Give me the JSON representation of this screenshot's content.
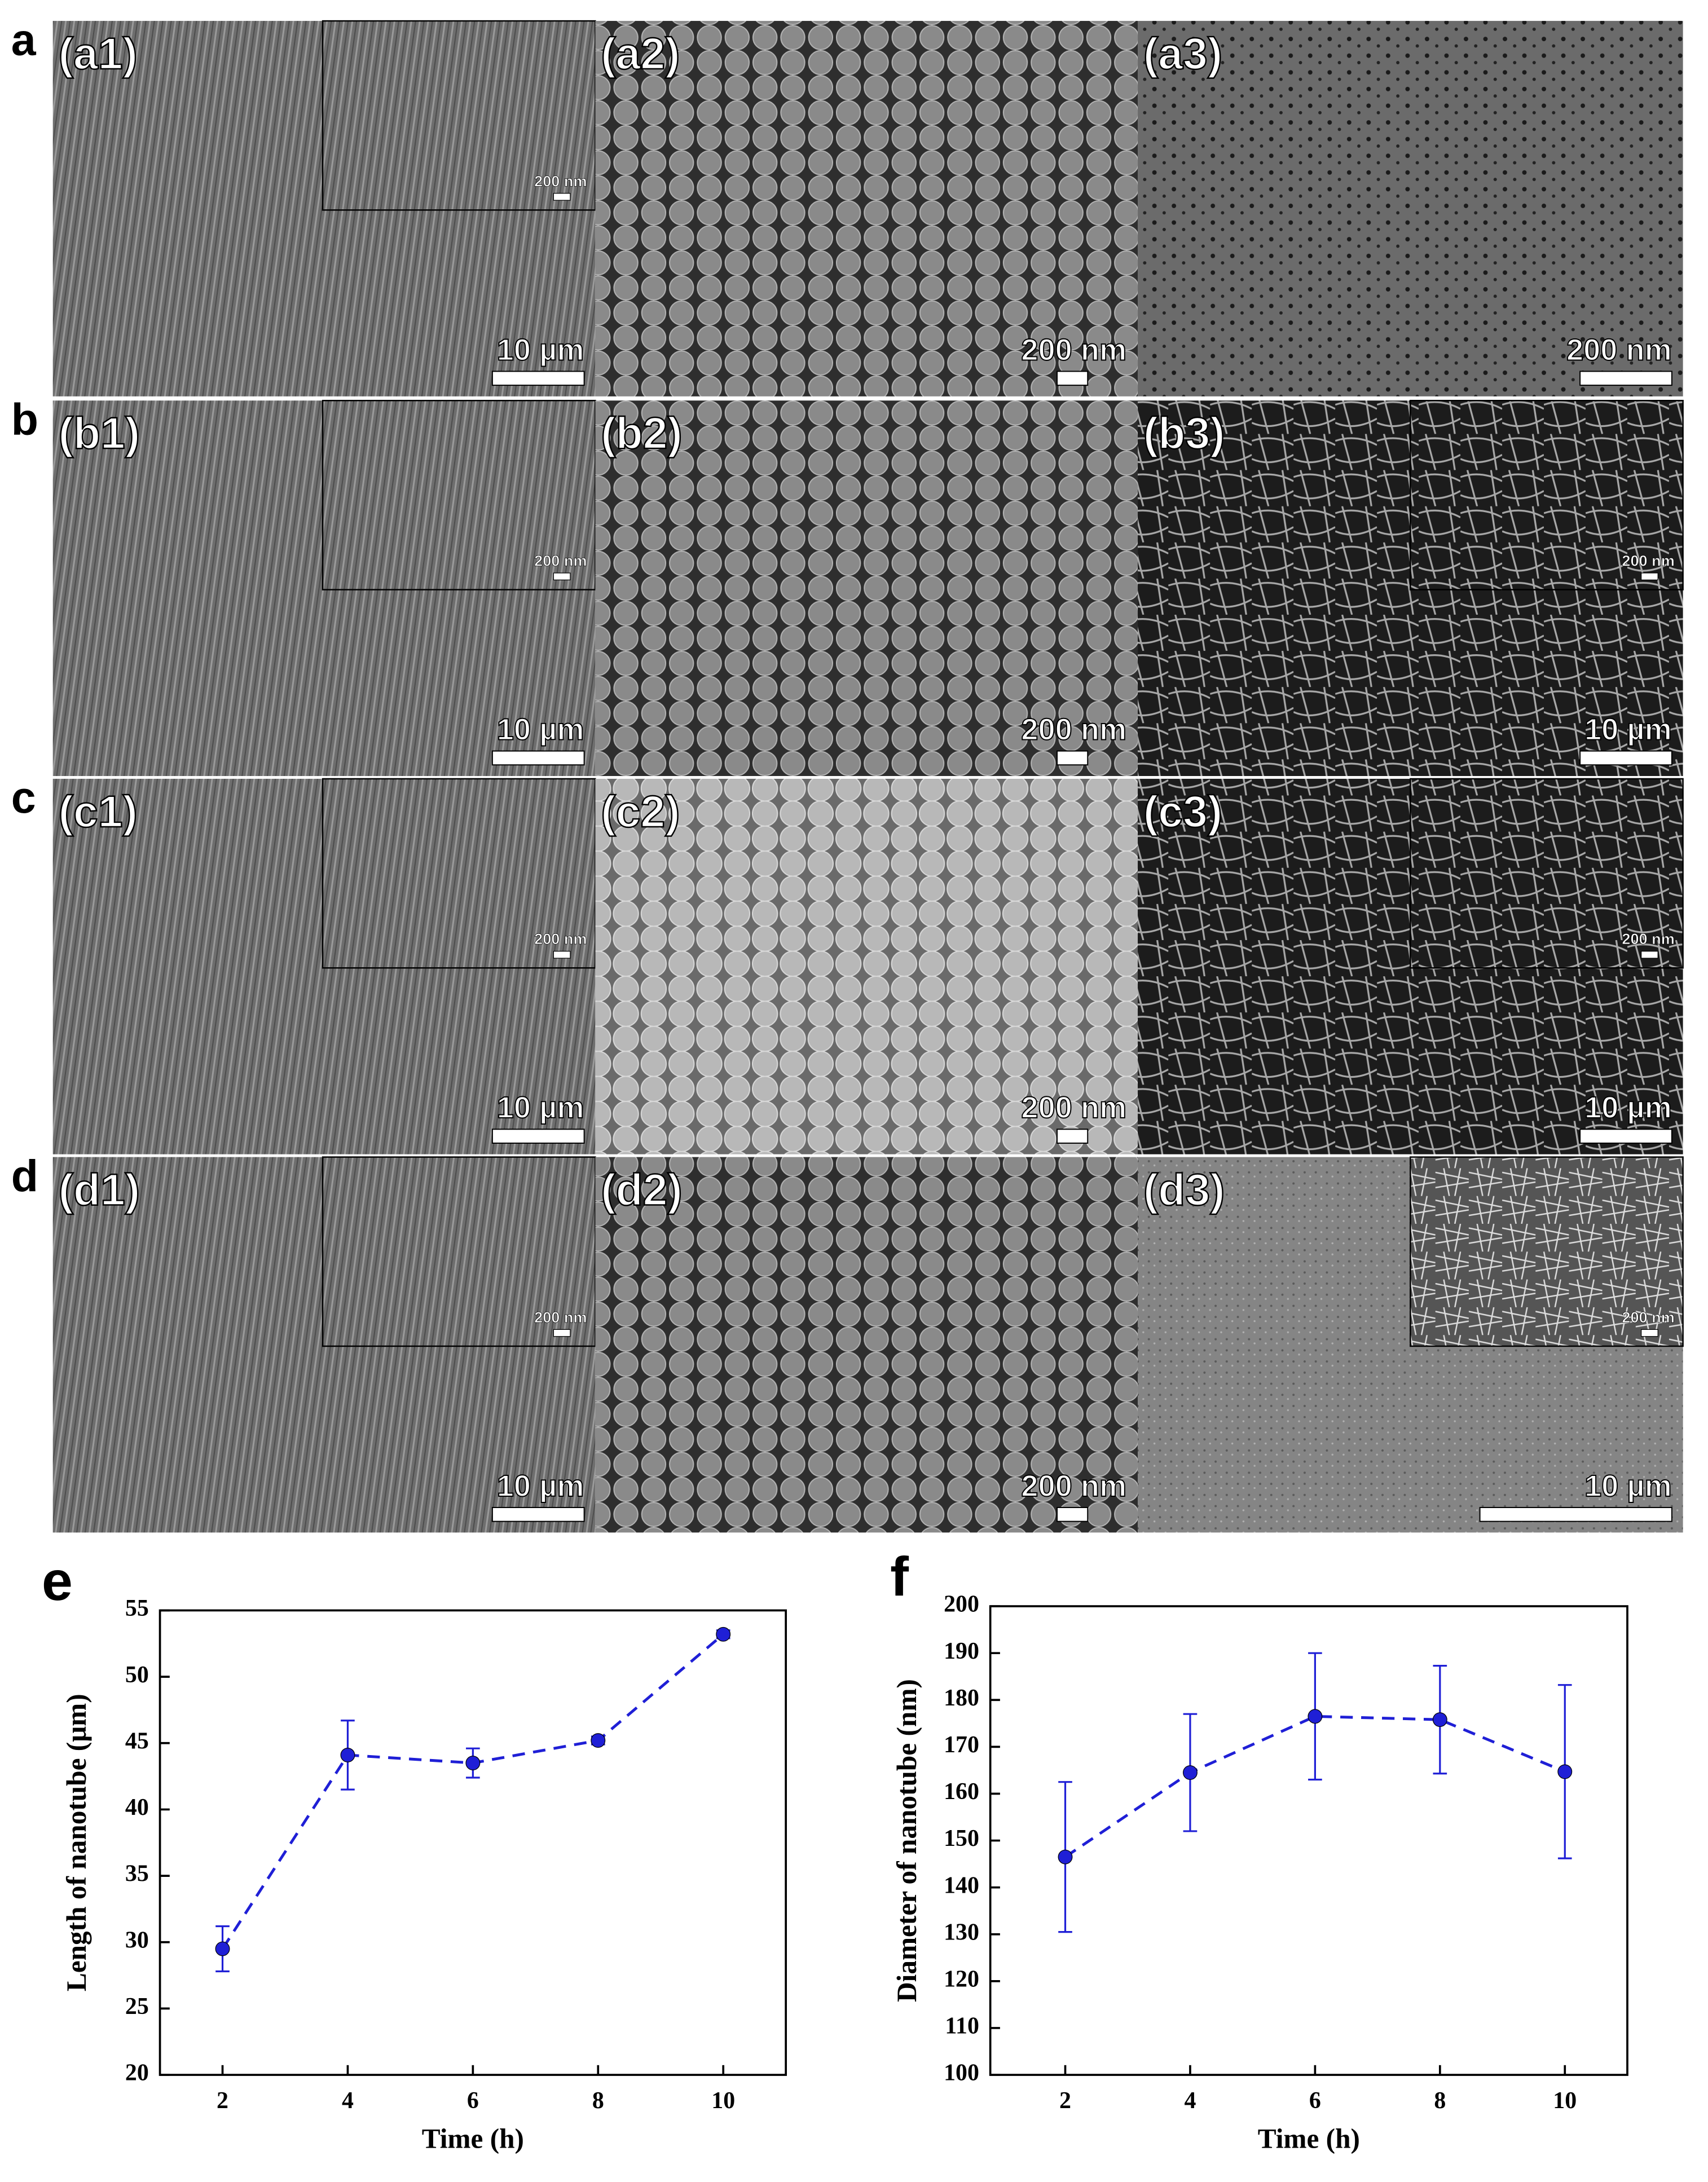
{
  "panels": [
    {
      "letter": "a",
      "cells": [
        {
          "label": "(a1)",
          "scale": "10 µm",
          "inset_scale": "200 nm"
        },
        {
          "label": "(a2)",
          "scale": "200 nm"
        },
        {
          "label": "(a3)",
          "scale": "200 nm"
        }
      ]
    },
    {
      "letter": "b",
      "cells": [
        {
          "label": "(b1)",
          "scale": "10 µm",
          "inset_scale": "200 nm"
        },
        {
          "label": "(b2)",
          "scale": "200 nm"
        },
        {
          "label": "(b3)",
          "scale": "10 µm",
          "inset_scale": "200 nm"
        }
      ]
    },
    {
      "letter": "c",
      "cells": [
        {
          "label": "(c1)",
          "scale": "10 µm",
          "inset_scale": "200 nm"
        },
        {
          "label": "(c2)",
          "scale": "200 nm"
        },
        {
          "label": "(c3)",
          "scale": "10 µm",
          "inset_scale": "200 nm"
        }
      ]
    },
    {
      "letter": "d",
      "cells": [
        {
          "label": "(d1)",
          "scale": "10 µm",
          "inset_scale": "200 nm"
        },
        {
          "label": "(d2)",
          "scale": "200 nm"
        },
        {
          "label": "(d3)",
          "scale": "10 µm",
          "inset_scale": "200 nm"
        }
      ]
    }
  ],
  "chart_data": [
    {
      "type": "line",
      "label": "e",
      "xlabel": "Time (h)",
      "ylabel": "Length of nanotube (μm)",
      "x": [
        2,
        4,
        6,
        8,
        10
      ],
      "series": [
        {
          "color": "#1f1fd6",
          "values": [
            29.5,
            44.1,
            43.5,
            45.2,
            53.2
          ],
          "errors": [
            1.7,
            2.6,
            1.1,
            0.3,
            0.3
          ]
        }
      ],
      "xlim": [
        1,
        11
      ],
      "xticks": [
        2,
        4,
        6,
        8,
        10
      ],
      "ylim": [
        20,
        55
      ],
      "yticks": [
        20,
        25,
        30,
        35,
        40,
        45,
        50,
        55
      ]
    },
    {
      "type": "line",
      "label": "f",
      "xlabel": "Time (h)",
      "ylabel": "Diameter of nanotube (nm)",
      "x": [
        2,
        4,
        6,
        8,
        10
      ],
      "series": [
        {
          "color": "#1f1fd6",
          "values": [
            146.5,
            164.5,
            176.5,
            175.8,
            164.7
          ],
          "errors": [
            16,
            12.5,
            13.5,
            11.5,
            18.5
          ]
        }
      ],
      "xlim": [
        0.8,
        11
      ],
      "xticks": [
        2,
        4,
        6,
        8,
        10
      ],
      "ylim": [
        100,
        200
      ],
      "yticks": [
        100,
        110,
        120,
        130,
        140,
        150,
        160,
        170,
        180,
        190,
        200
      ]
    }
  ]
}
